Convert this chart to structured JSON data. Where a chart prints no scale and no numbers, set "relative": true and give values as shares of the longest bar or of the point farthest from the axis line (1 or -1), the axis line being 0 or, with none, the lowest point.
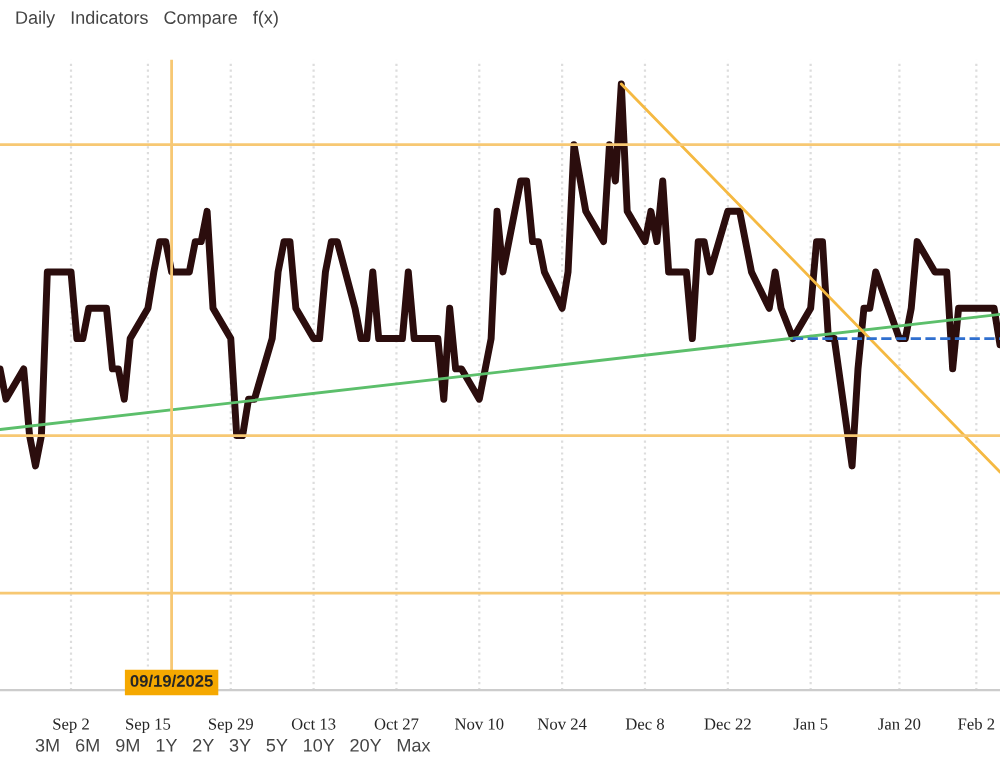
{
  "chart_data": {
    "type": "line",
    "relative": true,
    "annotations": [
      "Daily   Indicators   Compare   f(x)",
      "3M   6M   9M   1Y   2Y   3Y   5Y   10Y   20Y   Max"
    ],
    "xlim": [
      "2025-08-21",
      "2026-02-06"
    ],
    "xticks": [
      {
        "value": "2025-09-02",
        "label": "Sep 2"
      },
      {
        "value": "2025-09-15",
        "label": "Sep 15"
      },
      {
        "value": "2025-09-29",
        "label": "Sep 29"
      },
      {
        "value": "2025-10-13",
        "label": "Oct 13"
      },
      {
        "value": "2025-10-27",
        "label": "Oct 27"
      },
      {
        "value": "2025-11-10",
        "label": "Nov 10"
      },
      {
        "value": "2025-11-24",
        "label": "Nov 24"
      },
      {
        "value": "2025-12-08",
        "label": "Dec 8"
      },
      {
        "value": "2025-12-22",
        "label": "Dec 22"
      },
      {
        "value": "2026-01-05",
        "label": "Jan 5"
      },
      {
        "value": "2026-01-20",
        "label": "Jan 20"
      },
      {
        "value": "2026-02-02",
        "label": "Feb 2"
      }
    ],
    "tick_labels": "x",
    "grid": "x",
    "marker": "none",
    "series": [
      {
        "color": "#2b0d0d",
        "x": [
          "2025-08-21",
          "2025-08-22",
          "2025-08-25",
          "2025-08-26",
          "2025-08-27",
          "2025-08-28",
          "2025-08-29",
          "2025-09-02",
          "2025-09-03",
          "2025-09-04",
          "2025-09-05",
          "2025-09-08",
          "2025-09-09",
          "2025-09-10",
          "2025-09-11",
          "2025-09-12",
          "2025-09-15",
          "2025-09-16",
          "2025-09-17",
          "2025-09-18",
          "2025-09-19",
          "2025-09-22",
          "2025-09-23",
          "2025-09-24",
          "2025-09-25",
          "2025-09-26",
          "2025-09-29",
          "2025-09-30",
          "2025-10-01",
          "2025-10-02",
          "2025-10-03",
          "2025-10-06",
          "2025-10-07",
          "2025-10-08",
          "2025-10-09",
          "2025-10-10",
          "2025-10-13",
          "2025-10-14",
          "2025-10-15",
          "2025-10-16",
          "2025-10-17",
          "2025-10-20",
          "2025-10-21",
          "2025-10-22",
          "2025-10-23",
          "2025-10-24",
          "2025-10-27",
          "2025-10-28",
          "2025-10-29",
          "2025-10-30",
          "2025-10-31",
          "2025-11-03",
          "2025-11-04",
          "2025-11-05",
          "2025-11-06",
          "2025-11-07",
          "2025-11-10",
          "2025-11-11",
          "2025-11-12",
          "2025-11-13",
          "2025-11-14",
          "2025-11-17",
          "2025-11-18",
          "2025-11-19",
          "2025-11-20",
          "2025-11-21",
          "2025-11-24",
          "2025-11-25",
          "2025-11-26",
          "2025-11-28",
          "2025-12-01",
          "2025-12-02",
          "2025-12-03",
          "2025-12-04",
          "2025-12-05",
          "2025-12-08",
          "2025-12-09",
          "2025-12-10",
          "2025-12-11",
          "2025-12-12",
          "2025-12-15",
          "2025-12-16",
          "2025-12-17",
          "2025-12-18",
          "2025-12-19",
          "2025-12-22",
          "2025-12-23",
          "2025-12-24",
          "2025-12-26",
          "2025-12-29",
          "2025-12-30",
          "2025-12-31",
          "2026-01-02",
          "2026-01-05",
          "2026-01-06",
          "2026-01-07",
          "2026-01-08",
          "2026-01-09",
          "2026-01-12",
          "2026-01-13",
          "2026-01-14",
          "2026-01-15",
          "2026-01-16",
          "2026-01-20",
          "2026-01-21",
          "2026-01-22",
          "2026-01-23",
          "2026-01-26",
          "2026-01-27",
          "2026-01-28",
          "2026-01-29",
          "2026-01-30",
          "2026-02-02",
          "2026-02-03",
          "2026-02-04",
          "2026-02-05",
          "2026-02-06"
        ],
        "values": [
          0.53,
          0.48,
          0.53,
          0.42,
          0.37,
          0.42,
          0.69,
          0.69,
          0.58,
          0.58,
          0.63,
          0.63,
          0.53,
          0.53,
          0.48,
          0.58,
          0.63,
          0.69,
          0.74,
          0.74,
          0.69,
          0.69,
          0.74,
          0.74,
          0.79,
          0.63,
          0.58,
          0.42,
          0.42,
          0.48,
          0.48,
          0.58,
          0.69,
          0.74,
          0.74,
          0.63,
          0.58,
          0.58,
          0.69,
          0.74,
          0.74,
          0.63,
          0.58,
          0.58,
          0.69,
          0.58,
          0.58,
          0.58,
          0.69,
          0.58,
          0.58,
          0.58,
          0.48,
          0.63,
          0.53,
          0.53,
          0.48,
          0.53,
          0.58,
          0.79,
          0.69,
          0.84,
          0.84,
          0.74,
          0.74,
          0.69,
          0.63,
          0.69,
          0.9,
          0.79,
          0.74,
          0.9,
          0.84,
          1,
          0.79,
          0.74,
          0.79,
          0.74,
          0.84,
          0.69,
          0.69,
          0.58,
          0.74,
          0.74,
          0.69,
          0.79,
          0.79,
          0.79,
          0.69,
          0.63,
          0.69,
          0.63,
          0.58,
          0.63,
          0.74,
          0.74,
          0.58,
          0.58,
          0.37,
          0.53,
          0.63,
          0.63,
          0.69,
          0.58,
          0.58,
          0.63,
          0.74,
          0.69,
          0.69,
          0.69,
          0.53,
          0.63,
          0.63,
          0.63,
          0.63,
          0.63,
          0.57
        ]
      },
      {
        "type": "line",
        "color": "#5cbf6b",
        "x": [
          "2025-08-21",
          "2026-02-06"
        ],
        "values": [
          0.43,
          0.62
        ]
      },
      {
        "type": "line",
        "color": "#f5b942",
        "x": [
          "2025-12-04",
          "2026-02-06"
        ],
        "values": [
          1,
          0.36
        ]
      },
      {
        "type": "line",
        "color": "#2f6fcf",
        "line_style": "dashed",
        "x": [
          "2026-01-02",
          "2026-02-06"
        ],
        "values": [
          0.58,
          0.58
        ]
      }
    ],
    "ref_lines": [
      {
        "axis": "y",
        "value": 0.9,
        "color": "#f7c873"
      },
      {
        "axis": "y",
        "value": 0.42,
        "color": "#f7c873"
      },
      {
        "axis": "y",
        "value": 0.16,
        "color": "#f7c873"
      },
      {
        "axis": "x",
        "value": "2025-09-19",
        "label": "09/19/2025",
        "color": "#f7c873"
      }
    ]
  }
}
